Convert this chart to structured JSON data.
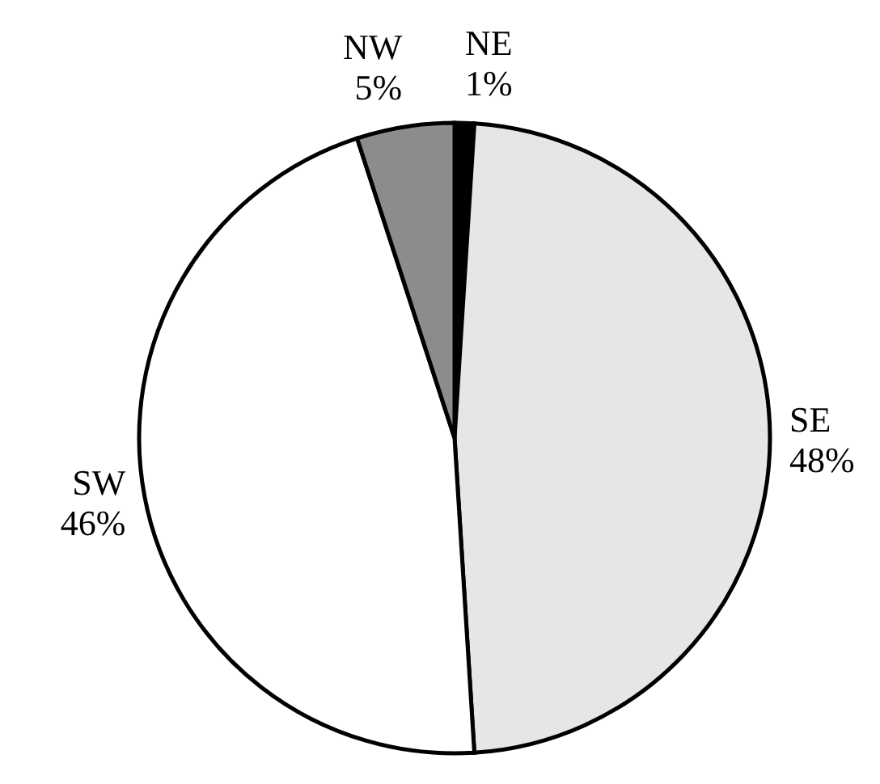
{
  "chart_data": {
    "type": "pie",
    "categories": [
      "NE",
      "SE",
      "SW",
      "NW"
    ],
    "values": [
      1,
      48,
      46,
      5
    ],
    "value_labels": [
      "1%",
      "48%",
      "46%",
      "5%"
    ],
    "colors": [
      "#000000",
      "#e6e6e6",
      "#ffffff",
      "#8c8c8c"
    ],
    "legend": false
  }
}
